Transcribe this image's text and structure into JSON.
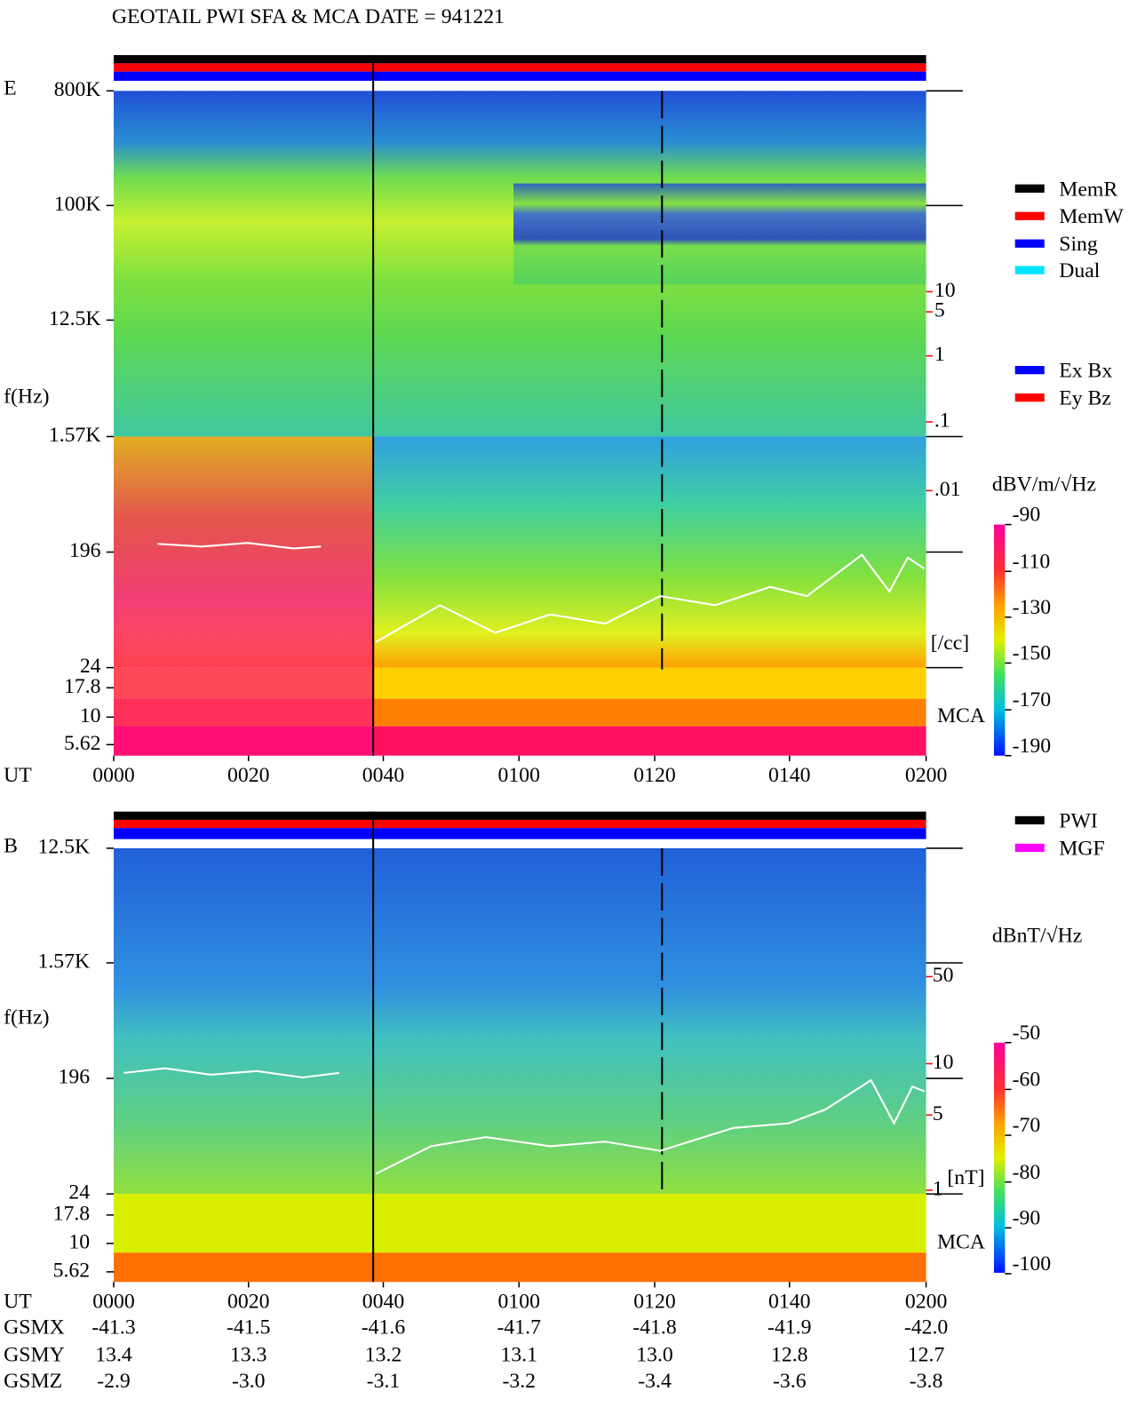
{
  "header": {
    "title": "GEOTAIL   PWI SFA & MCA   DATE = 941221"
  },
  "panel_e": {
    "label": "E",
    "freq_axis_label": "f(Hz)",
    "freq_ticks": [
      "800K",
      "100K",
      "12.5K",
      "1.57K",
      "196",
      "24",
      "17.8",
      "10",
      "5.62"
    ],
    "time_axis_label": "UT",
    "time_ticks": [
      "0000",
      "0020",
      "0040",
      "0100",
      "0120",
      "0140",
      "0200"
    ],
    "mode_legend": [
      {
        "label": "MemR",
        "color": "#000000"
      },
      {
        "label": "MemW",
        "color": "#ff0000"
      },
      {
        "label": "Sing",
        "color": "#0000ff"
      },
      {
        "label": "Dual",
        "color": "#00e5ff"
      }
    ],
    "component_legend": [
      {
        "label": "Ex Bx",
        "color": "#0000ff"
      },
      {
        "label": "Ey Bz",
        "color": "#ff0000"
      }
    ],
    "density_ticks": [
      "10",
      "5",
      "1",
      ".1",
      ".01"
    ],
    "density_unit": "[/cc]",
    "mca_label": "MCA",
    "colorbar_unit": "dBV/m/√Hz",
    "colorbar_ticks": [
      "-90",
      "-110",
      "-130",
      "-150",
      "-170",
      "-190"
    ]
  },
  "panel_b": {
    "label": "B",
    "freq_axis_label": "f(Hz)",
    "freq_ticks": [
      "12.5K",
      "1.57K",
      "196",
      "24",
      "17.8",
      "10",
      "5.62"
    ],
    "time_axis_label": "UT",
    "time_ticks": [
      "0000",
      "0020",
      "0040",
      "0100",
      "0120",
      "0140",
      "0200"
    ],
    "source_legend": [
      {
        "label": "PWI",
        "color": "#000000"
      },
      {
        "label": "MGF",
        "color": "#ff00ff"
      }
    ],
    "field_ticks": [
      "50",
      "10",
      "5",
      "1"
    ],
    "field_unit": "[nT]",
    "mca_label": "MCA",
    "colorbar_unit": "dBnT/√Hz",
    "colorbar_ticks": [
      "-50",
      "-60",
      "-70",
      "-80",
      "-90",
      "-100"
    ]
  },
  "orbit": {
    "rows": [
      {
        "label": "GSMX",
        "values": [
          "-41.3",
          "-41.5",
          "-41.6",
          "-41.7",
          "-41.8",
          "-41.9",
          "-42.0"
        ]
      },
      {
        "label": "GSMY",
        "values": [
          "13.4",
          "13.3",
          "13.2",
          "13.1",
          "13.0",
          "12.8",
          "12.7"
        ]
      },
      {
        "label": "GSMZ",
        "values": [
          "-2.9",
          "-3.0",
          "-3.1",
          "-3.2",
          "-3.4",
          "-3.6",
          "-3.8"
        ]
      }
    ]
  }
}
